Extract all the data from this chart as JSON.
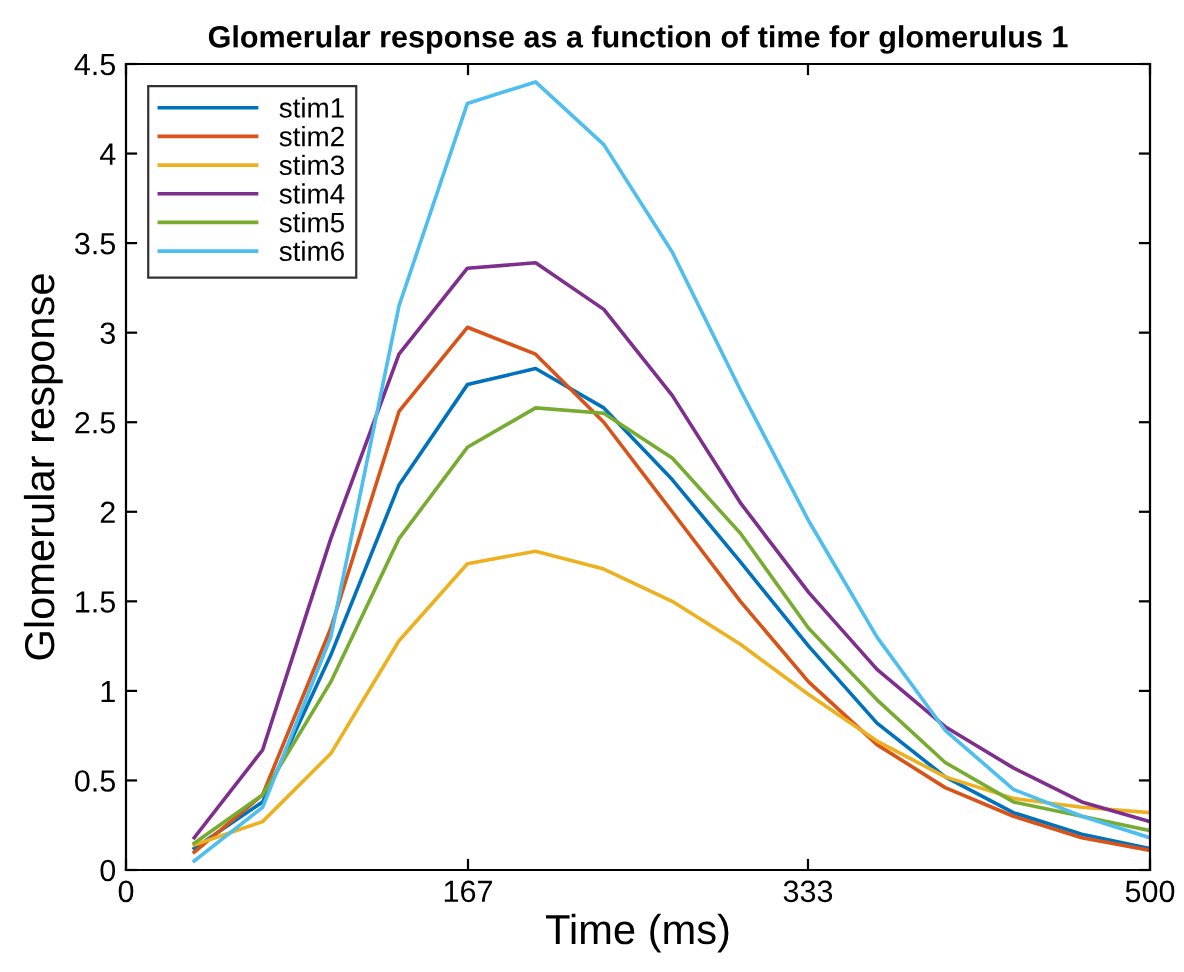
{
  "chart_data": {
    "type": "line",
    "title": "Glomerular response as a function of time for glomerulus 1",
    "xlabel": "Time (ms)",
    "ylabel": "Glomerular response",
    "x": [
      33.3,
      66.7,
      100,
      133.3,
      166.7,
      200,
      233.3,
      266.7,
      300,
      333.3,
      366.7,
      400,
      433.3,
      466.7,
      500
    ],
    "series": [
      {
        "name": "stim1",
        "color": "#0072bd",
        "values": [
          0.12,
          0.38,
          1.2,
          2.15,
          2.71,
          2.8,
          2.58,
          2.18,
          1.72,
          1.25,
          0.82,
          0.52,
          0.32,
          0.2,
          0.12
        ]
      },
      {
        "name": "stim2",
        "color": "#d95319",
        "values": [
          0.1,
          0.42,
          1.35,
          2.56,
          3.03,
          2.88,
          2.5,
          2.0,
          1.5,
          1.05,
          0.7,
          0.46,
          0.3,
          0.18,
          0.11
        ]
      },
      {
        "name": "stim3",
        "color": "#edb120",
        "values": [
          0.14,
          0.27,
          0.65,
          1.28,
          1.71,
          1.78,
          1.68,
          1.5,
          1.26,
          0.98,
          0.72,
          0.52,
          0.4,
          0.35,
          0.32
        ]
      },
      {
        "name": "stim4",
        "color": "#7e2f8e",
        "values": [
          0.18,
          0.67,
          1.85,
          2.88,
          3.36,
          3.39,
          3.13,
          2.65,
          2.05,
          1.55,
          1.12,
          0.8,
          0.57,
          0.38,
          0.27
        ]
      },
      {
        "name": "stim5",
        "color": "#77ac30",
        "values": [
          0.15,
          0.42,
          1.05,
          1.85,
          2.36,
          2.58,
          2.55,
          2.3,
          1.88,
          1.35,
          0.95,
          0.6,
          0.38,
          0.3,
          0.22
        ]
      },
      {
        "name": "stim6",
        "color": "#4dbeee",
        "values": [
          0.05,
          0.35,
          1.3,
          3.15,
          4.28,
          4.4,
          4.05,
          3.45,
          2.68,
          1.95,
          1.3,
          0.78,
          0.45,
          0.3,
          0.18
        ]
      }
    ],
    "xlim": [
      0,
      500
    ],
    "xticks": [
      0,
      167,
      333,
      500
    ],
    "ylim": [
      0,
      4.5
    ],
    "yticks": [
      0,
      0.5,
      1,
      1.5,
      2,
      2.5,
      3,
      3.5,
      4,
      4.5
    ],
    "grid": false,
    "legend": "top left",
    "marker": "none",
    "line_style": "solid"
  }
}
